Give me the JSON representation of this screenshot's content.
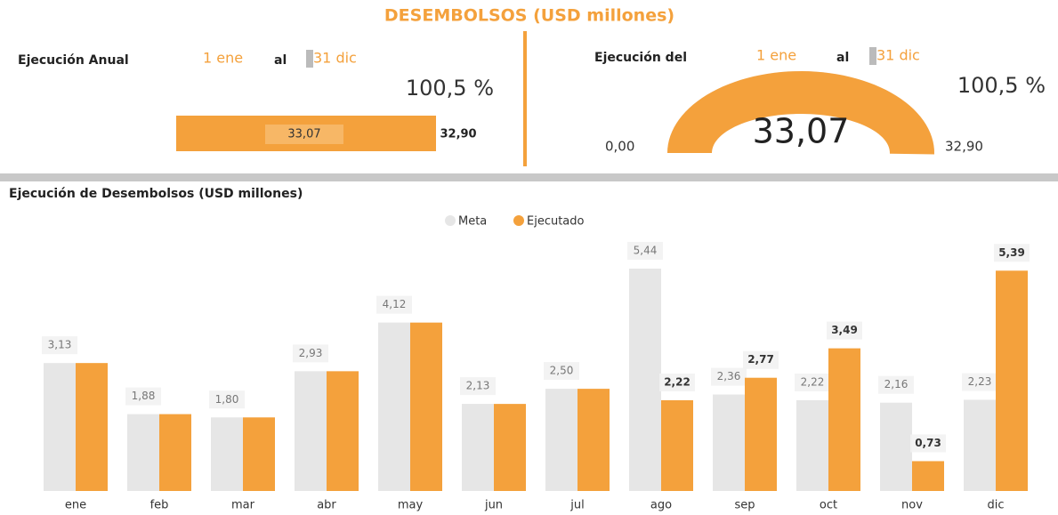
{
  "header": {
    "title": "DESEMBOLSOS (USD millones)"
  },
  "annual": {
    "label": "Ejecución Anual",
    "from": "1 ene",
    "to_word": "al",
    "to": "31 dic",
    "percent": 100.5,
    "percent_label": "100,5 %",
    "value": 33.07,
    "value_label": "33,07",
    "target": 32.9,
    "target_label": "32,90"
  },
  "gauge": {
    "label": "Ejecución del",
    "from": "1 ene",
    "to_word": "al",
    "to": "31 dic",
    "percent": 100.5,
    "percent_label": "100,5 %",
    "min": 0,
    "min_label": "0,00",
    "value": 33.07,
    "value_label": "33,07",
    "max": 32.9,
    "max_label": "32,90"
  },
  "chart_data": {
    "type": "bar",
    "title": "Ejecución de Desembolsos (USD millones)",
    "categories": [
      "ene",
      "feb",
      "mar",
      "abr",
      "may",
      "jun",
      "jul",
      "ago",
      "sep",
      "oct",
      "nov",
      "dic"
    ],
    "series": [
      {
        "name": "Meta",
        "color": "#e6e6e6",
        "values": [
          3.13,
          1.88,
          1.8,
          2.93,
          4.12,
          2.13,
          2.5,
          5.44,
          2.36,
          2.22,
          2.16,
          2.23
        ],
        "value_labels": [
          "3,13",
          "1,88",
          "1,80",
          "2,93",
          "4,12",
          "2,13",
          "2,50",
          "5,44",
          "2,36",
          "2,22",
          "2,16",
          "2,23"
        ]
      },
      {
        "name": "Ejecutado",
        "color": "#f4a13c",
        "values": [
          3.13,
          1.88,
          1.8,
          2.93,
          4.12,
          2.13,
          2.5,
          2.22,
          2.77,
          3.49,
          0.73,
          5.39
        ],
        "value_labels": [
          null,
          null,
          null,
          null,
          null,
          null,
          null,
          "2,22",
          "2,77",
          "3,49",
          "0,73",
          "5,39"
        ]
      }
    ],
    "legend": "top"
  }
}
